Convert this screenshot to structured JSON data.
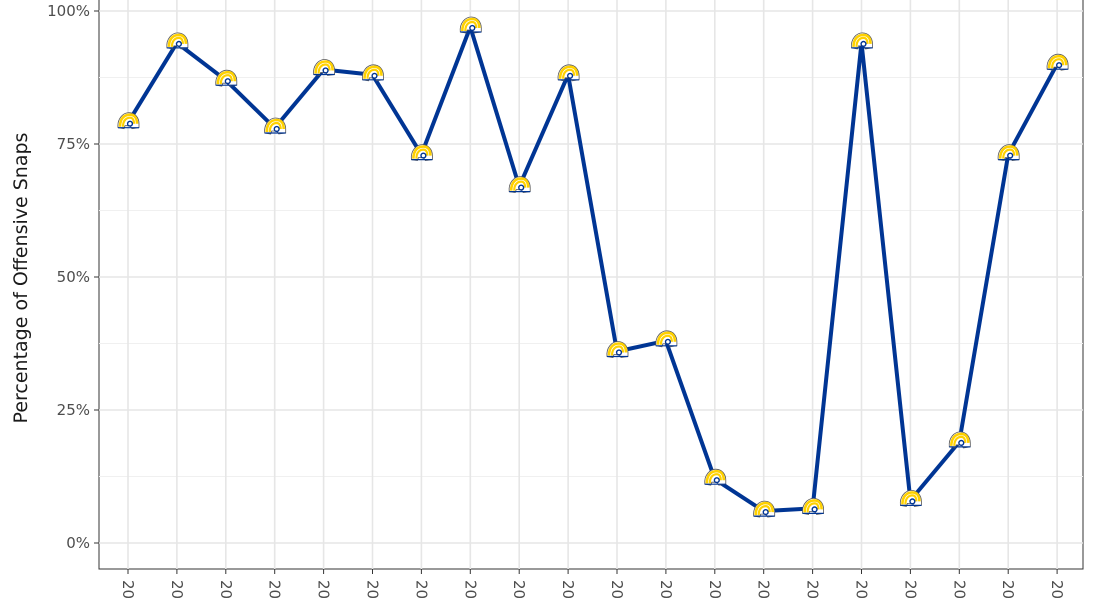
{
  "chart_data": {
    "type": "line",
    "ylabel": "Percentage of Offensive Snaps",
    "ylim": [
      0,
      1
    ],
    "y_ticks": [
      {
        "value": 0,
        "label": "0%"
      },
      {
        "value": 0.25,
        "label": "25%"
      },
      {
        "value": 0.5,
        "label": "50%"
      },
      {
        "value": 0.75,
        "label": "75%"
      },
      {
        "value": 1,
        "label": "100%"
      }
    ],
    "x_tick_labels": [
      "20",
      "20",
      "20",
      "20",
      "20",
      "20",
      "20",
      "20",
      "20",
      "20",
      "20",
      "20",
      "20",
      "20",
      "20",
      "20",
      "20",
      "20",
      "20",
      "20"
    ],
    "values": [
      0.79,
      0.94,
      0.87,
      0.78,
      0.89,
      0.88,
      0.73,
      0.97,
      0.67,
      0.88,
      0.36,
      0.38,
      0.12,
      0.06,
      0.065,
      0.94,
      0.08,
      0.19,
      0.73,
      0.9
    ],
    "grid": true,
    "line_color": "#003594",
    "marker": "team-helmet-icon",
    "marker_colors": {
      "gold": "#FFD100",
      "navy": "#003594"
    }
  }
}
